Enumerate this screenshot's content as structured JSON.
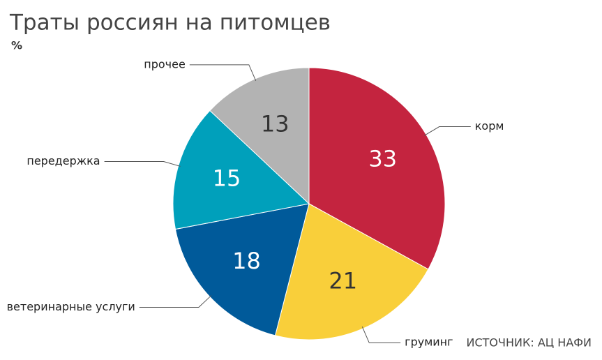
{
  "chart_data": {
    "type": "pie",
    "title": "Траты россиян на питомцев",
    "subtitle": "%",
    "source": "ИСТОЧНИК: АЦ НАФИ",
    "categories": [
      "корм",
      "груминг",
      "ветеринарные услуги",
      "передержка",
      "прочее"
    ],
    "values": [
      33,
      21,
      18,
      15,
      13
    ],
    "colors": [
      "#c4243f",
      "#f9cf3a",
      "#005a9a",
      "#00a0bb",
      "#b3b3b3"
    ]
  }
}
